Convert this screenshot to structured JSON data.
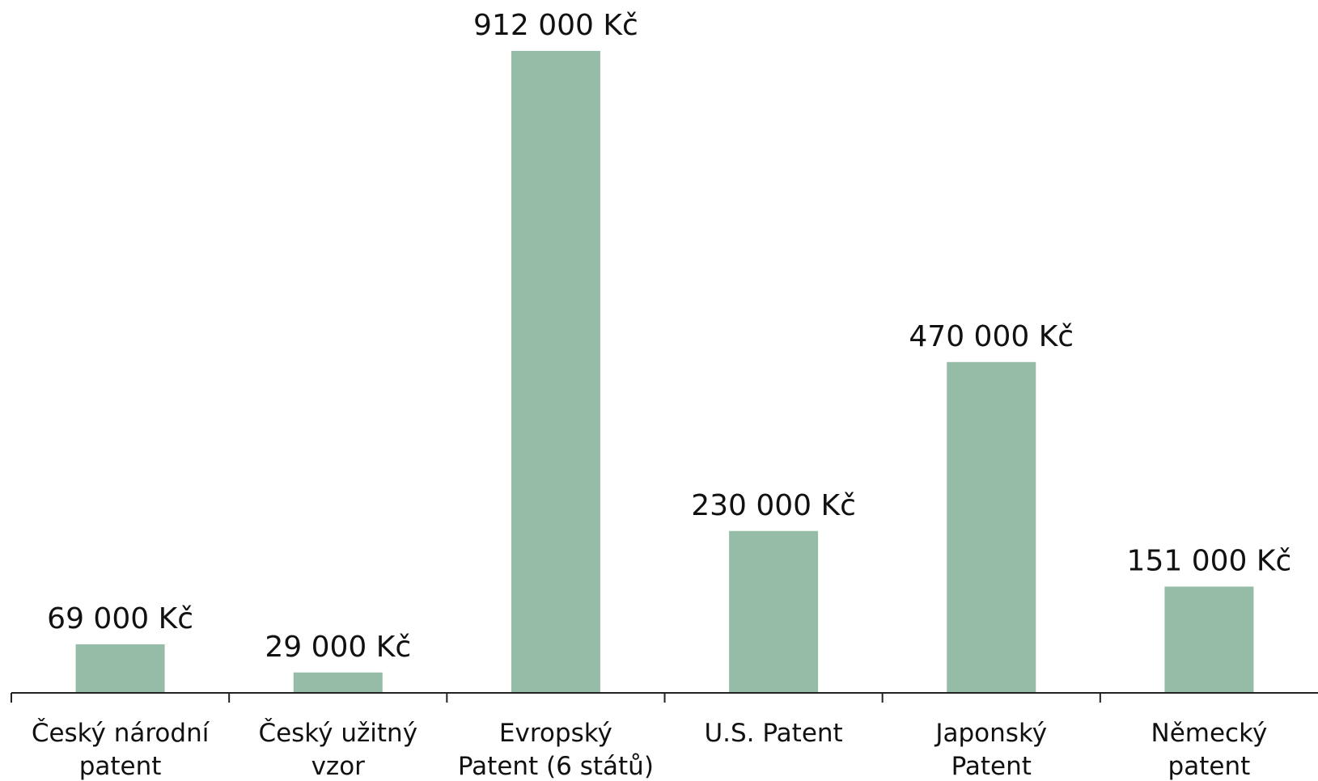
{
  "chart_data": {
    "type": "bar",
    "title": "",
    "xlabel": "",
    "ylabel": "",
    "categories": [
      [
        "Český národní",
        "patent"
      ],
      [
        "Český užitný",
        "vzor"
      ],
      [
        "Evropský",
        "Patent (6 států)"
      ],
      [
        "U.S. Patent"
      ],
      [
        "Japonský",
        "Patent"
      ],
      [
        "Německý",
        "patent"
      ]
    ],
    "values": [
      69000,
      29000,
      912000,
      230000,
      470000,
      151000
    ],
    "value_labels": [
      "69 000 Kč",
      "29 000 Kč",
      "912 000 Kč",
      "230 000 Kč",
      "470 000 Kč",
      "151 000 Kč"
    ],
    "ylim": [
      0,
      912000
    ],
    "grid": false,
    "legend": "none",
    "colors": {
      "bar": "#94bca6",
      "axis": "#222222",
      "text": "#111111"
    }
  }
}
